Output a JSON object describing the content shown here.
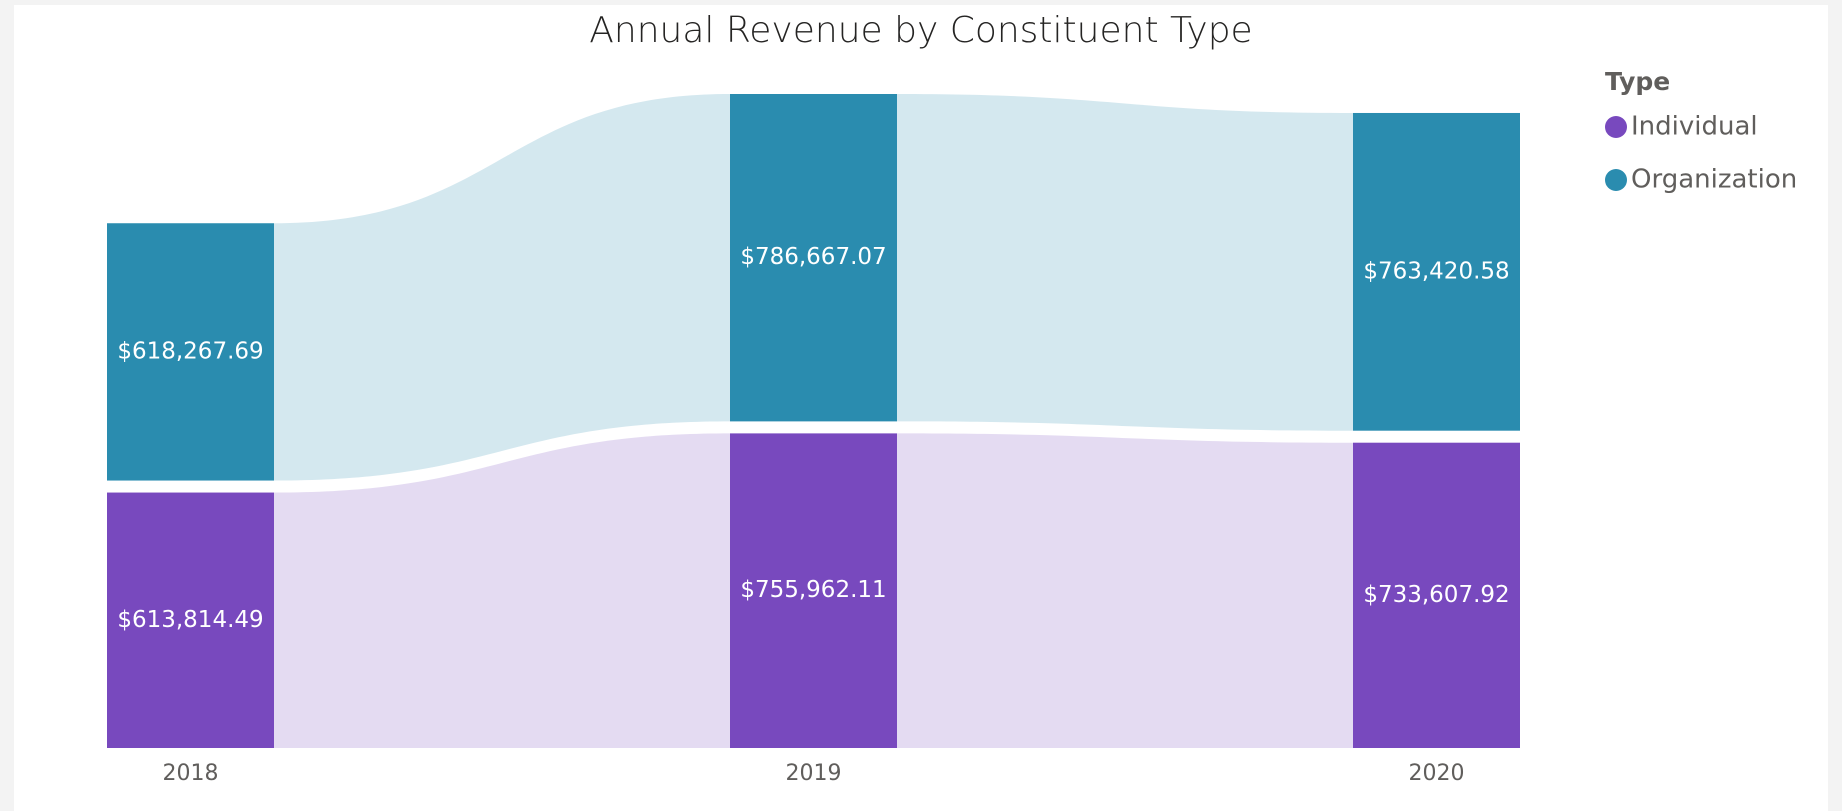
{
  "chart_data": {
    "type": "ribbon",
    "title": "Annual Revenue by Constituent Type",
    "legend_title": "Type",
    "legend": "right",
    "categories": [
      "2018",
      "2019",
      "2020"
    ],
    "series": [
      {
        "name": "Individual",
        "color": "#7849be",
        "values": [
          613814.49,
          755962.11,
          733607.92
        ],
        "value_labels": [
          "$613,814.49",
          "$755,962.11",
          "$733,607.92"
        ]
      },
      {
        "name": "Organization",
        "color": "#2a8caf",
        "values": [
          618267.69,
          786667.07,
          763420.58
        ],
        "value_labels": [
          "$618,267.69",
          "$786,667.07",
          "$763,420.58"
        ]
      }
    ]
  }
}
